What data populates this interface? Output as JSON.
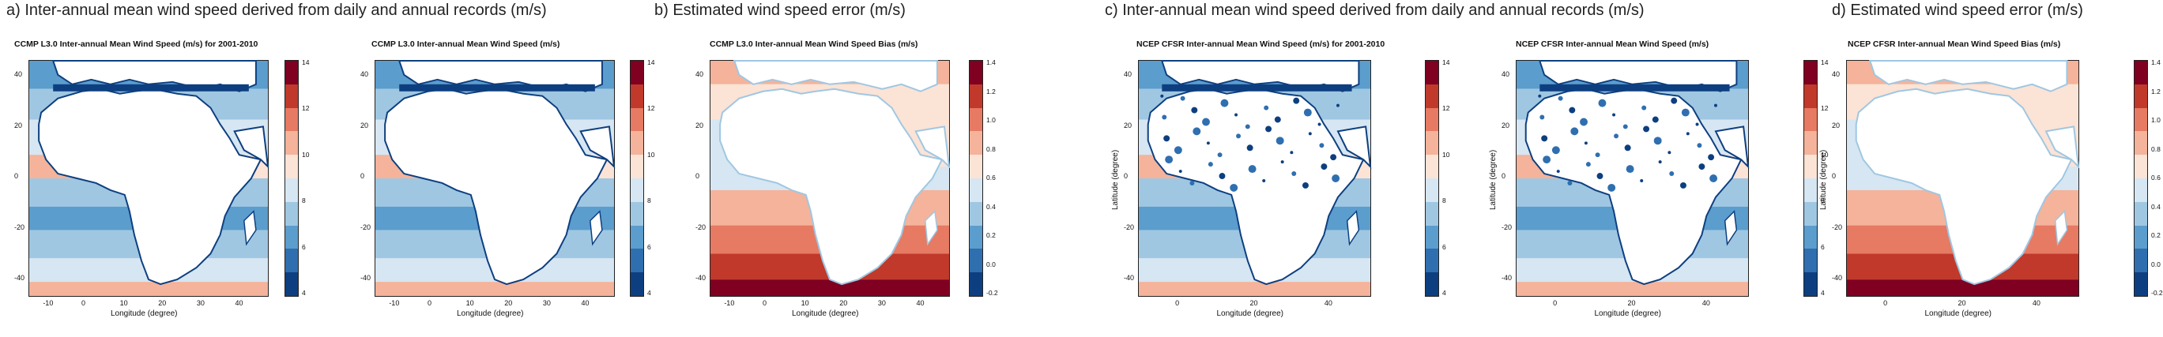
{
  "headers": [
    {
      "text": "a) Inter-annual mean wind speed derived from daily and annual records (m/s)"
    },
    {
      "text": "b) Estimated wind speed error (m/s)"
    },
    {
      "text": "c) Inter-annual mean wind speed derived from daily and annual records (m/s)"
    },
    {
      "text": "d) Estimated wind speed error (m/s)"
    }
  ],
  "panels": [
    {
      "title": "CCMP L3.0 Inter-annual Mean Wind Speed (m/s) for 2001-2010",
      "type": "speed",
      "style": "ccmp",
      "ylabel": "",
      "xlabel": "Longitude (degree)",
      "yticks": [
        "40",
        "20",
        "0",
        "-20",
        "-40"
      ],
      "xticks": [
        "-10",
        "0",
        "10",
        "20",
        "30",
        "40"
      ],
      "cbar": [
        "14",
        "12",
        "10",
        "8",
        "6",
        "4"
      ]
    },
    {
      "title": "CCMP L3.0 Inter-annual Mean Wind Speed (m/s)",
      "type": "speed",
      "style": "ccmp",
      "ylabel": "",
      "xlabel": "Longitude (degree)",
      "yticks": [
        "40",
        "20",
        "0",
        "-20",
        "-40"
      ],
      "xticks": [
        "-10",
        "0",
        "10",
        "20",
        "30",
        "40"
      ],
      "cbar": [
        "14",
        "12",
        "10",
        "8",
        "6",
        "4"
      ]
    },
    {
      "title": "CCMP L3.0 Inter-annual Mean Wind Speed Bias (m/s)",
      "type": "bias",
      "style": "ccmp",
      "ylabel": "",
      "xlabel": "Longitude (degree)",
      "yticks": [
        "40",
        "20",
        "0",
        "-20",
        "-40"
      ],
      "xticks": [
        "-10",
        "0",
        "10",
        "20",
        "30",
        "40"
      ],
      "cbar": [
        "1.4",
        "1.2",
        "1.0",
        "0.8",
        "0.6",
        "0.4",
        "0.2",
        "0.0",
        "-0.2"
      ]
    },
    {
      "title": "NCEP CFSR Inter-annual Mean Wind Speed (m/s) for 2001-2010",
      "type": "speed",
      "style": "ncep",
      "ylabel": "Latitude (degree)",
      "xlabel": "Longitude (degree)",
      "yticks": [
        "40",
        "20",
        "0",
        "-20",
        "-40"
      ],
      "xticks": [
        "0",
        "20",
        "40"
      ],
      "cbar": [
        "14",
        "12",
        "10",
        "8",
        "6",
        "4"
      ]
    },
    {
      "title": "NCEP CFSR Inter-annual Mean Wind Speed (m/s)",
      "type": "speed",
      "style": "ncep",
      "ylabel": "Latitude (degree)",
      "xlabel": "Longitude (degree)",
      "yticks": [
        "40",
        "20",
        "0",
        "-20",
        "-40"
      ],
      "xticks": [
        "0",
        "20",
        "40"
      ],
      "cbar": [
        "14",
        "12",
        "10",
        "8",
        "6",
        "4"
      ]
    },
    {
      "title": "NCEP CFSR Inter-annual Mean Wind Speed Bias (m/s)",
      "type": "bias",
      "style": "ncep",
      "ylabel": "Latitude (degree)",
      "xlabel": "Longitude (degree)",
      "yticks": [
        "40",
        "20",
        "0",
        "-20",
        "-40"
      ],
      "xticks": [
        "0",
        "20",
        "40"
      ],
      "cbar": [
        "1.4",
        "1.2",
        "1.0",
        "0.8",
        "0.6",
        "0.4",
        "0.2",
        "0.0",
        "-0.2"
      ]
    }
  ],
  "palettes": {
    "speed": [
      "#7f0020",
      "#c0392b",
      "#e67a63",
      "#f4b39a",
      "#fbe3d6",
      "#d6e6f2",
      "#9fc7e2",
      "#5b9dcd",
      "#2f6fb0",
      "#0d3f80"
    ],
    "bias": [
      "#7f0020",
      "#c0392b",
      "#e67a63",
      "#f4b39a",
      "#fbe3d6",
      "#d6e6f2",
      "#9fc7e2",
      "#5b9dcd",
      "#2f6fb0",
      "#0d3f80"
    ]
  }
}
